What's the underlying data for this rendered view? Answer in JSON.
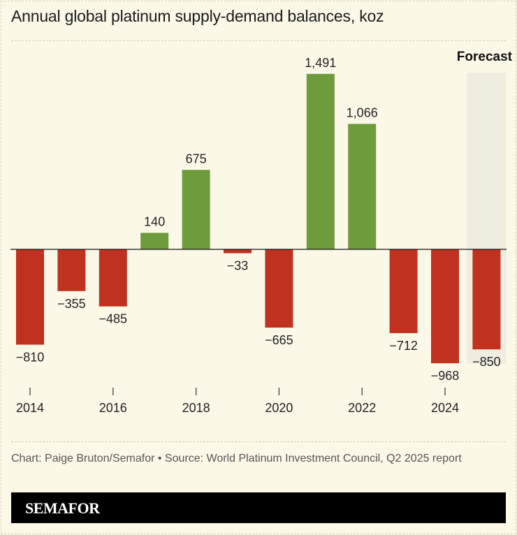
{
  "title": "Annual global platinum supply-demand balances, koz",
  "chart_data": {
    "type": "bar",
    "title": "Annual global platinum supply-demand balances, koz",
    "categories": [
      "2014",
      "2015",
      "2016",
      "2017",
      "2018",
      "2019",
      "2020",
      "2021",
      "2022",
      "2023",
      "2024",
      "2025"
    ],
    "values": [
      -810,
      -355,
      -485,
      140,
      675,
      -33,
      -665,
      1491,
      1066,
      -712,
      -968,
      -850
    ],
    "value_labels": [
      "−810",
      "−355",
      "−485",
      "140",
      "675",
      "−33",
      "−665",
      "1,491",
      "1,066",
      "−712",
      "−968",
      "−850"
    ],
    "tick_labels": [
      "2014",
      "2016",
      "2018",
      "2020",
      "2022",
      "2024"
    ],
    "forecast_category": "2025",
    "forecast_label": "Forecast",
    "ylim": [
      -1000,
      1500
    ],
    "grid": false,
    "colors": {
      "positive": "#6e9b3c",
      "negative": "#c0321f",
      "forecast_shade": "#efece0"
    }
  },
  "source": "Chart: Paige Bruton/Semafor • Source: World Platinum Investment Council, Q2 2025 report",
  "brand": "SEMAFOR"
}
